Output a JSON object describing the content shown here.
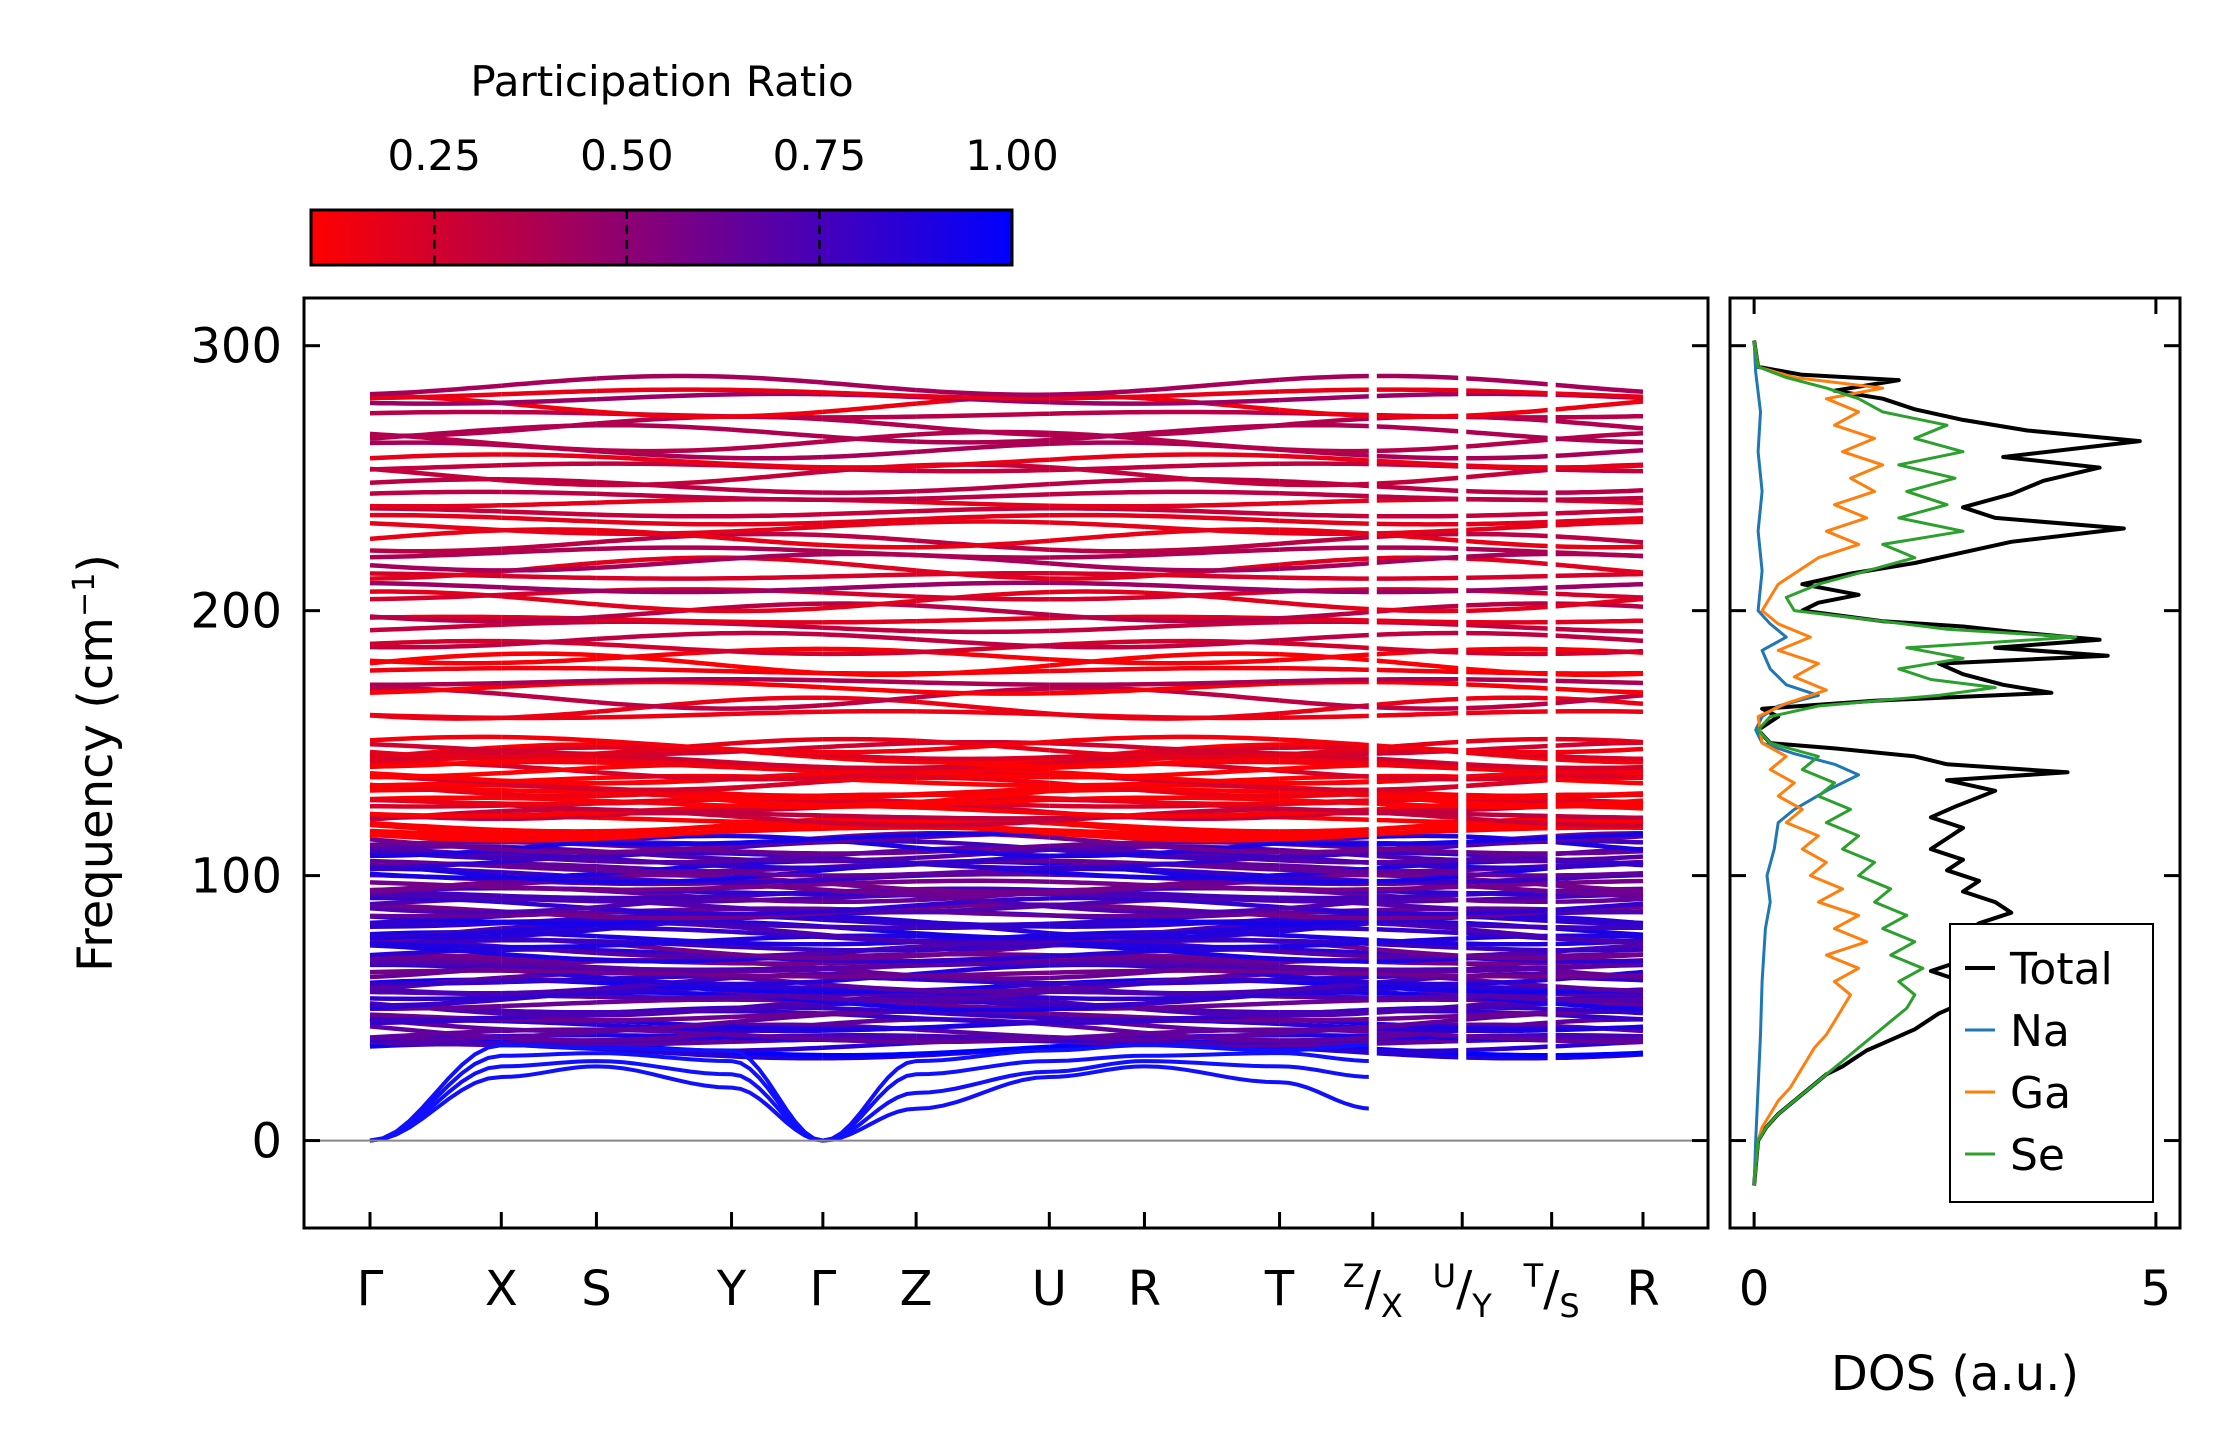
{
  "chart_data": [
    {
      "type": "line",
      "title": "",
      "description_label": "Phonon band structure colored by participation ratio",
      "ylabel": "Frequency (cm⁻¹)",
      "ylim": [
        -33,
        318
      ],
      "yticks": [
        0,
        100,
        200,
        300
      ],
      "ytick_labels": [
        "0",
        "100",
        "200",
        "300"
      ],
      "kpath_labels": [
        "Γ",
        "X",
        "S",
        "Y",
        "Γ",
        "Z",
        "U",
        "R",
        "T",
        "Z|X",
        "U|Y",
        "T|S",
        "R"
      ],
      "kpath_positions": [
        0,
        0.69,
        1.19,
        1.9,
        2.38,
        2.87,
        3.57,
        4.07,
        4.78,
        5.27,
        5.74,
        6.21,
        6.69
      ],
      "branch_breaks": [
        5.27,
        5.74,
        6.21
      ],
      "gap_region": [
        150,
        160
      ],
      "frequency_bands": [
        {
          "range": [
            0,
            35
          ],
          "participation": 0.95
        },
        {
          "range": [
            35,
            115
          ],
          "participation": 0.75
        },
        {
          "range": [
            115,
            150
          ],
          "participation": 0.15
        },
        {
          "range": [
            160,
            200
          ],
          "participation": 0.25
        },
        {
          "range": [
            200,
            290
          ],
          "participation": 0.3
        }
      ],
      "colorbar": {
        "title": "Participation Ratio",
        "min": 0.09,
        "max": 1.0,
        "ticks": [
          0.25,
          0.5,
          0.75,
          1.0
        ],
        "tick_labels": [
          "0.25",
          "0.50",
          "0.75",
          "1.00"
        ],
        "color_low": "#ff0000",
        "color_high": "#0000ff"
      }
    },
    {
      "type": "line",
      "title": "",
      "xlabel": "DOS (a.u.)",
      "xlim": [
        -0.3,
        5.3
      ],
      "xticks": [
        0,
        5
      ],
      "xtick_labels": [
        "0",
        "5"
      ],
      "ylim": [
        -33,
        318
      ],
      "legend_position": "bottom-right",
      "series": [
        {
          "name": "Total",
          "color": "#000000",
          "points": [
            [
              0,
              -17
            ],
            [
              0.05,
              0
            ],
            [
              0.15,
              5
            ],
            [
              0.3,
              10
            ],
            [
              0.5,
              15
            ],
            [
              0.7,
              20
            ],
            [
              0.9,
              25
            ],
            [
              1.1,
              28
            ],
            [
              1.2,
              30
            ],
            [
              1.4,
              34
            ],
            [
              1.7,
              38
            ],
            [
              2.0,
              42
            ],
            [
              2.3,
              48
            ],
            [
              2.6,
              52
            ],
            [
              2.9,
              56
            ],
            [
              2.6,
              60
            ],
            [
              2.2,
              64
            ],
            [
              2.6,
              68
            ],
            [
              3.0,
              74
            ],
            [
              2.6,
              78
            ],
            [
              2.8,
              82
            ],
            [
              3.2,
              86
            ],
            [
              3.0,
              90
            ],
            [
              2.6,
              94
            ],
            [
              2.8,
              98
            ],
            [
              2.4,
              102
            ],
            [
              2.6,
              106
            ],
            [
              2.2,
              110
            ],
            [
              2.4,
              114
            ],
            [
              2.6,
              118
            ],
            [
              2.2,
              122
            ],
            [
              2.5,
              126
            ],
            [
              3.0,
              132
            ],
            [
              2.4,
              136
            ],
            [
              3.9,
              139
            ],
            [
              2.4,
              142
            ],
            [
              2.0,
              145
            ],
            [
              1.0,
              148
            ],
            [
              0.2,
              150
            ],
            [
              0.05,
              155
            ],
            [
              0.3,
              160
            ],
            [
              0.1,
              163
            ],
            [
              1.5,
              166
            ],
            [
              3.7,
              169
            ],
            [
              3.1,
              172
            ],
            [
              2.6,
              176
            ],
            [
              2.3,
              180
            ],
            [
              4.4,
              183
            ],
            [
              3.0,
              186
            ],
            [
              4.3,
              189
            ],
            [
              3.2,
              192
            ],
            [
              2.6,
              194
            ],
            [
              1.6,
              196
            ],
            [
              0.6,
              200
            ],
            [
              0.8,
              203
            ],
            [
              1.3,
              206
            ],
            [
              0.6,
              210
            ],
            [
              1.2,
              214
            ],
            [
              2.0,
              218
            ],
            [
              2.6,
              222
            ],
            [
              3.2,
              226
            ],
            [
              4.6,
              231
            ],
            [
              3.0,
              235
            ],
            [
              2.6,
              239
            ],
            [
              3.2,
              244
            ],
            [
              3.6,
              249
            ],
            [
              4.3,
              254
            ],
            [
              3.1,
              258
            ],
            [
              4.8,
              264
            ],
            [
              3.4,
              268
            ],
            [
              2.6,
              272
            ],
            [
              2.0,
              276
            ],
            [
              1.6,
              280
            ],
            [
              1.0,
              283
            ],
            [
              1.8,
              287
            ],
            [
              0.6,
              289
            ],
            [
              0.05,
              292
            ],
            [
              0,
              302
            ]
          ]
        },
        {
          "name": "Na",
          "color": "#1f77b4",
          "points": [
            [
              0,
              -17
            ],
            [
              0.02,
              0
            ],
            [
              0.05,
              20
            ],
            [
              0.08,
              40
            ],
            [
              0.1,
              60
            ],
            [
              0.14,
              80
            ],
            [
              0.2,
              90
            ],
            [
              0.16,
              100
            ],
            [
              0.25,
              110
            ],
            [
              0.3,
              120
            ],
            [
              0.5,
              125
            ],
            [
              0.9,
              132
            ],
            [
              1.3,
              138
            ],
            [
              1.0,
              142
            ],
            [
              0.5,
              146
            ],
            [
              0.1,
              150
            ],
            [
              0.02,
              155
            ],
            [
              0.1,
              160
            ],
            [
              0.3,
              164
            ],
            [
              0.8,
              168
            ],
            [
              0.4,
              172
            ],
            [
              0.2,
              178
            ],
            [
              0.1,
              185
            ],
            [
              0.4,
              190
            ],
            [
              0.2,
              195
            ],
            [
              0.05,
              200
            ],
            [
              0.1,
              215
            ],
            [
              0.05,
              230
            ],
            [
              0.1,
              245
            ],
            [
              0.05,
              260
            ],
            [
              0.08,
              275
            ],
            [
              0.02,
              290
            ],
            [
              0,
              302
            ]
          ]
        },
        {
          "name": "Ga",
          "color": "#ff7f0e",
          "points": [
            [
              0,
              -17
            ],
            [
              0.05,
              0
            ],
            [
              0.1,
              5
            ],
            [
              0.2,
              10
            ],
            [
              0.3,
              15
            ],
            [
              0.45,
              20
            ],
            [
              0.55,
              25
            ],
            [
              0.65,
              30
            ],
            [
              0.75,
              35
            ],
            [
              0.9,
              40
            ],
            [
              1.0,
              45
            ],
            [
              1.1,
              50
            ],
            [
              1.2,
              55
            ],
            [
              1.0,
              60
            ],
            [
              1.3,
              65
            ],
            [
              0.9,
              70
            ],
            [
              1.4,
              75
            ],
            [
              1.0,
              80
            ],
            [
              1.3,
              85
            ],
            [
              0.8,
              90
            ],
            [
              1.1,
              95
            ],
            [
              0.7,
              100
            ],
            [
              0.9,
              105
            ],
            [
              0.6,
              110
            ],
            [
              0.8,
              115
            ],
            [
              0.4,
              120
            ],
            [
              0.6,
              125
            ],
            [
              0.3,
              130
            ],
            [
              0.5,
              135
            ],
            [
              0.2,
              140
            ],
            [
              0.4,
              145
            ],
            [
              0.1,
              150
            ],
            [
              0.05,
              160
            ],
            [
              0.4,
              165
            ],
            [
              0.9,
              170
            ],
            [
              0.5,
              175
            ],
            [
              0.8,
              180
            ],
            [
              0.3,
              185
            ],
            [
              0.7,
              190
            ],
            [
              0.3,
              195
            ],
            [
              0.1,
              200
            ],
            [
              0.3,
              210
            ],
            [
              0.8,
              220
            ],
            [
              1.3,
              225
            ],
            [
              0.9,
              230
            ],
            [
              1.4,
              235
            ],
            [
              1.0,
              240
            ],
            [
              1.5,
              245
            ],
            [
              1.2,
              250
            ],
            [
              1.6,
              255
            ],
            [
              1.1,
              260
            ],
            [
              1.5,
              265
            ],
            [
              1.0,
              270
            ],
            [
              1.3,
              275
            ],
            [
              0.9,
              280
            ],
            [
              1.6,
              284
            ],
            [
              0.5,
              288
            ],
            [
              0.05,
              292
            ],
            [
              0,
              302
            ]
          ]
        },
        {
          "name": "Se",
          "color": "#2ca02c",
          "points": [
            [
              0,
              -17
            ],
            [
              0.05,
              0
            ],
            [
              0.15,
              5
            ],
            [
              0.3,
              10
            ],
            [
              0.5,
              15
            ],
            [
              0.7,
              20
            ],
            [
              0.9,
              25
            ],
            [
              1.1,
              30
            ],
            [
              1.3,
              35
            ],
            [
              1.5,
              40
            ],
            [
              1.7,
              45
            ],
            [
              1.9,
              50
            ],
            [
              2.0,
              55
            ],
            [
              1.8,
              60
            ],
            [
              2.1,
              65
            ],
            [
              1.7,
              70
            ],
            [
              2.0,
              75
            ],
            [
              1.6,
              80
            ],
            [
              1.9,
              85
            ],
            [
              1.5,
              90
            ],
            [
              1.7,
              95
            ],
            [
              1.3,
              100
            ],
            [
              1.5,
              105
            ],
            [
              1.1,
              110
            ],
            [
              1.3,
              115
            ],
            [
              0.9,
              120
            ],
            [
              1.2,
              125
            ],
            [
              0.8,
              130
            ],
            [
              1.0,
              135
            ],
            [
              0.6,
              140
            ],
            [
              0.8,
              145
            ],
            [
              0.2,
              150
            ],
            [
              0.05,
              155
            ],
            [
              0.2,
              160
            ],
            [
              0.8,
              164
            ],
            [
              2.3,
              168
            ],
            [
              3.0,
              171
            ],
            [
              2.2,
              174
            ],
            [
              1.8,
              178
            ],
            [
              2.6,
              182
            ],
            [
              1.9,
              186
            ],
            [
              4.0,
              190
            ],
            [
              2.4,
              193
            ],
            [
              1.6,
              196
            ],
            [
              0.5,
              200
            ],
            [
              0.4,
              205
            ],
            [
              0.8,
              210
            ],
            [
              1.4,
              215
            ],
            [
              2.0,
              220
            ],
            [
              1.6,
              225
            ],
            [
              2.6,
              230
            ],
            [
              1.8,
              235
            ],
            [
              2.4,
              240
            ],
            [
              1.9,
              245
            ],
            [
              2.5,
              250
            ],
            [
              1.8,
              255
            ],
            [
              2.6,
              260
            ],
            [
              2.0,
              265
            ],
            [
              2.4,
              270
            ],
            [
              1.6,
              275
            ],
            [
              1.3,
              280
            ],
            [
              0.9,
              284
            ],
            [
              0.4,
              288
            ],
            [
              0.05,
              292
            ],
            [
              0,
              302
            ]
          ]
        }
      ],
      "legend": [
        "Total",
        "Na",
        "Ga",
        "Se"
      ]
    }
  ]
}
